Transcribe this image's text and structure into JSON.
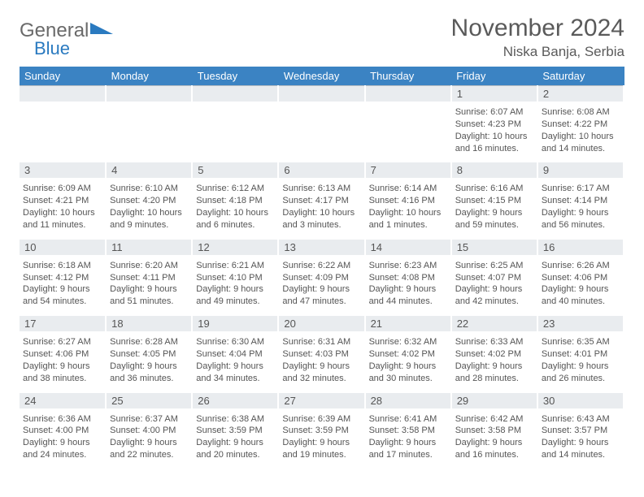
{
  "logo": {
    "text1": "General",
    "text2": "Blue",
    "color1": "#6a6a6a",
    "color2": "#2a7ac0"
  },
  "title": "November 2024",
  "location": "Niska Banja, Serbia",
  "header_bg": "#3b83c3",
  "header_fg": "#ffffff",
  "daynum_bg": "#e9ecef",
  "text_color": "#555555",
  "weekdays": [
    "Sunday",
    "Monday",
    "Tuesday",
    "Wednesday",
    "Thursday",
    "Friday",
    "Saturday"
  ],
  "weeks": [
    [
      null,
      null,
      null,
      null,
      null,
      {
        "n": "1",
        "sunrise": "6:07 AM",
        "sunset": "4:23 PM",
        "day_h": "10",
        "day_m": "16"
      },
      {
        "n": "2",
        "sunrise": "6:08 AM",
        "sunset": "4:22 PM",
        "day_h": "10",
        "day_m": "14"
      }
    ],
    [
      {
        "n": "3",
        "sunrise": "6:09 AM",
        "sunset": "4:21 PM",
        "day_h": "10",
        "day_m": "11"
      },
      {
        "n": "4",
        "sunrise": "6:10 AM",
        "sunset": "4:20 PM",
        "day_h": "10",
        "day_m": "9"
      },
      {
        "n": "5",
        "sunrise": "6:12 AM",
        "sunset": "4:18 PM",
        "day_h": "10",
        "day_m": "6"
      },
      {
        "n": "6",
        "sunrise": "6:13 AM",
        "sunset": "4:17 PM",
        "day_h": "10",
        "day_m": "3"
      },
      {
        "n": "7",
        "sunrise": "6:14 AM",
        "sunset": "4:16 PM",
        "day_h": "10",
        "day_m": "1"
      },
      {
        "n": "8",
        "sunrise": "6:16 AM",
        "sunset": "4:15 PM",
        "day_h": "9",
        "day_m": "59"
      },
      {
        "n": "9",
        "sunrise": "6:17 AM",
        "sunset": "4:14 PM",
        "day_h": "9",
        "day_m": "56"
      }
    ],
    [
      {
        "n": "10",
        "sunrise": "6:18 AM",
        "sunset": "4:12 PM",
        "day_h": "9",
        "day_m": "54"
      },
      {
        "n": "11",
        "sunrise": "6:20 AM",
        "sunset": "4:11 PM",
        "day_h": "9",
        "day_m": "51"
      },
      {
        "n": "12",
        "sunrise": "6:21 AM",
        "sunset": "4:10 PM",
        "day_h": "9",
        "day_m": "49"
      },
      {
        "n": "13",
        "sunrise": "6:22 AM",
        "sunset": "4:09 PM",
        "day_h": "9",
        "day_m": "47"
      },
      {
        "n": "14",
        "sunrise": "6:23 AM",
        "sunset": "4:08 PM",
        "day_h": "9",
        "day_m": "44"
      },
      {
        "n": "15",
        "sunrise": "6:25 AM",
        "sunset": "4:07 PM",
        "day_h": "9",
        "day_m": "42"
      },
      {
        "n": "16",
        "sunrise": "6:26 AM",
        "sunset": "4:06 PM",
        "day_h": "9",
        "day_m": "40"
      }
    ],
    [
      {
        "n": "17",
        "sunrise": "6:27 AM",
        "sunset": "4:06 PM",
        "day_h": "9",
        "day_m": "38"
      },
      {
        "n": "18",
        "sunrise": "6:28 AM",
        "sunset": "4:05 PM",
        "day_h": "9",
        "day_m": "36"
      },
      {
        "n": "19",
        "sunrise": "6:30 AM",
        "sunset": "4:04 PM",
        "day_h": "9",
        "day_m": "34"
      },
      {
        "n": "20",
        "sunrise": "6:31 AM",
        "sunset": "4:03 PM",
        "day_h": "9",
        "day_m": "32"
      },
      {
        "n": "21",
        "sunrise": "6:32 AM",
        "sunset": "4:02 PM",
        "day_h": "9",
        "day_m": "30"
      },
      {
        "n": "22",
        "sunrise": "6:33 AM",
        "sunset": "4:02 PM",
        "day_h": "9",
        "day_m": "28"
      },
      {
        "n": "23",
        "sunrise": "6:35 AM",
        "sunset": "4:01 PM",
        "day_h": "9",
        "day_m": "26"
      }
    ],
    [
      {
        "n": "24",
        "sunrise": "6:36 AM",
        "sunset": "4:00 PM",
        "day_h": "9",
        "day_m": "24"
      },
      {
        "n": "25",
        "sunrise": "6:37 AM",
        "sunset": "4:00 PM",
        "day_h": "9",
        "day_m": "22"
      },
      {
        "n": "26",
        "sunrise": "6:38 AM",
        "sunset": "3:59 PM",
        "day_h": "9",
        "day_m": "20"
      },
      {
        "n": "27",
        "sunrise": "6:39 AM",
        "sunset": "3:59 PM",
        "day_h": "9",
        "day_m": "19"
      },
      {
        "n": "28",
        "sunrise": "6:41 AM",
        "sunset": "3:58 PM",
        "day_h": "9",
        "day_m": "17"
      },
      {
        "n": "29",
        "sunrise": "6:42 AM",
        "sunset": "3:58 PM",
        "day_h": "9",
        "day_m": "16"
      },
      {
        "n": "30",
        "sunrise": "6:43 AM",
        "sunset": "3:57 PM",
        "day_h": "9",
        "day_m": "14"
      }
    ]
  ]
}
